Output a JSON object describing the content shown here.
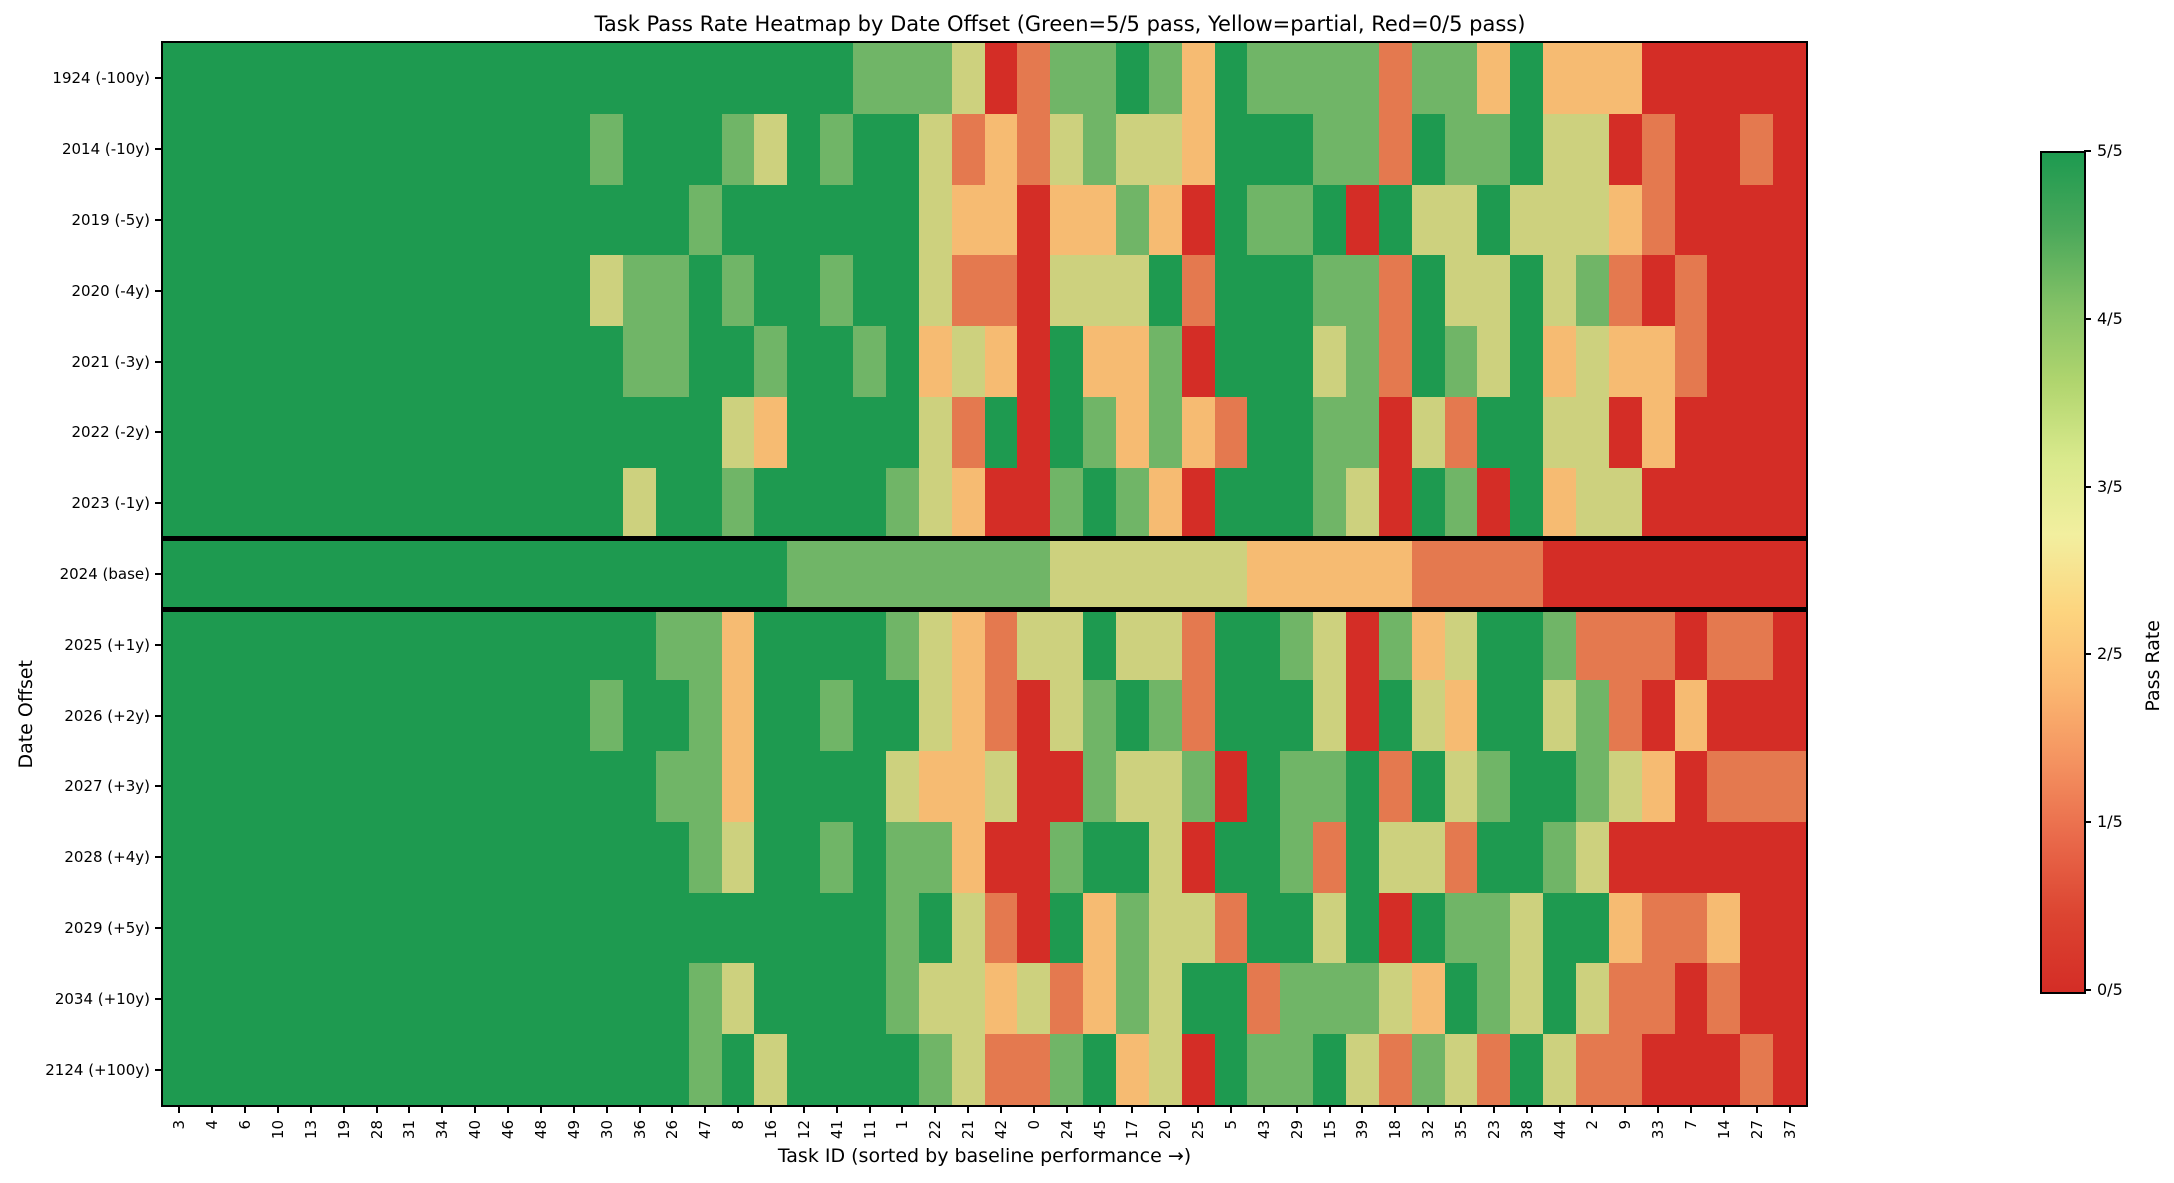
{
  "title": "Task Pass Rate Heatmap by Date Offset  (Green=5/5 pass, Yellow=partial, Red=0/5 pass)",
  "x_axis_label": "Task ID (sorted by baseline performance →)",
  "y_axis_label": "Date Offset",
  "colorbar": {
    "label": "Pass Rate",
    "ticks": [
      "0/5",
      "1/5",
      "2/5",
      "3/5",
      "4/5",
      "5/5"
    ],
    "gradient_bottom_to_top": [
      "#d42d26",
      "#dc4431",
      "#e9694a",
      "#f49260",
      "#fbb871",
      "#fdd57f",
      "#f2ef9f",
      "#d9e98c",
      "#b0d56e",
      "#83c166",
      "#4aa85a",
      "#1d9a50"
    ]
  },
  "chart_data": {
    "type": "heatmap",
    "title": "Task Pass Rate Heatmap by Date Offset  (Green=5/5 pass, Yellow=partial, Red=0/5 pass)",
    "xlabel": "Task ID (sorted by baseline performance →)",
    "ylabel": "Date Offset",
    "value_range": [
      0,
      5
    ],
    "value_unit": "passes out of 5",
    "legend_position": "right colorbar",
    "grid": false,
    "baseline_row": "2024 (base)",
    "separator_lines": "thick black horizontal lines above and below the 2024 (base) row",
    "x_labels": [
      "3",
      "4",
      "6",
      "10",
      "13",
      "19",
      "28",
      "31",
      "34",
      "40",
      "46",
      "48",
      "49",
      "30",
      "36",
      "26",
      "47",
      "8",
      "16",
      "12",
      "41",
      "11",
      "1",
      "22",
      "21",
      "42",
      "0",
      "24",
      "45",
      "17",
      "20",
      "25",
      "5",
      "43",
      "29",
      "15",
      "39",
      "18",
      "32",
      "35",
      "23",
      "38",
      "44",
      "2",
      "9",
      "33",
      "7",
      "14",
      "27",
      "37"
    ],
    "y_labels": [
      "1924 (-100y)",
      "2014 (-10y)",
      "2019 (-5y)",
      "2020 (-4y)",
      "2021 (-3y)",
      "2022 (-2y)",
      "2023 (-1y)",
      "2024 (base)",
      "2025 (+1y)",
      "2026 (+2y)",
      "2027 (+3y)",
      "2028 (+4y)",
      "2029 (+5y)",
      "2034 (+10y)",
      "2124 (+100y)"
    ],
    "level_colors": {
      "0": "#d42d26",
      "1": "#e4794f",
      "2": "#f6bb72",
      "3": "#cdd17e",
      "4": "#70b567",
      "5": "#1e9a50"
    },
    "matrix": [
      [
        5,
        5,
        5,
        5,
        5,
        5,
        5,
        5,
        5,
        5,
        5,
        5,
        5,
        5,
        5,
        5,
        5,
        5,
        5,
        5,
        5,
        4,
        4,
        4,
        3,
        0,
        1,
        4,
        4,
        5,
        4,
        2,
        5,
        4,
        4,
        4,
        4,
        1,
        4,
        4,
        2,
        5,
        2,
        2,
        2,
        0,
        0,
        0,
        0,
        0
      ],
      [
        5,
        5,
        5,
        5,
        5,
        5,
        5,
        5,
        5,
        5,
        5,
        5,
        5,
        4,
        5,
        5,
        5,
        4,
        3,
        5,
        4,
        5,
        5,
        3,
        1,
        2,
        1,
        3,
        4,
        3,
        3,
        2,
        5,
        5,
        5,
        4,
        4,
        1,
        5,
        4,
        4,
        5,
        3,
        3,
        0,
        1,
        0,
        0,
        1,
        0
      ],
      [
        5,
        5,
        5,
        5,
        5,
        5,
        5,
        5,
        5,
        5,
        5,
        5,
        5,
        5,
        5,
        5,
        4,
        5,
        5,
        5,
        5,
        5,
        5,
        3,
        2,
        2,
        0,
        2,
        2,
        4,
        2,
        0,
        5,
        4,
        4,
        5,
        0,
        5,
        3,
        3,
        5,
        3,
        3,
        3,
        2,
        1,
        0,
        0,
        0,
        0
      ],
      [
        5,
        5,
        5,
        5,
        5,
        5,
        5,
        5,
        5,
        5,
        5,
        5,
        5,
        3,
        4,
        4,
        5,
        4,
        5,
        5,
        4,
        5,
        5,
        3,
        1,
        1,
        0,
        3,
        3,
        3,
        5,
        1,
        5,
        5,
        5,
        4,
        4,
        1,
        5,
        3,
        3,
        5,
        3,
        4,
        1,
        0,
        1,
        0,
        0,
        0
      ],
      [
        5,
        5,
        5,
        5,
        5,
        5,
        5,
        5,
        5,
        5,
        5,
        5,
        5,
        5,
        4,
        4,
        5,
        5,
        4,
        5,
        5,
        4,
        5,
        2,
        3,
        2,
        0,
        5,
        2,
        2,
        4,
        0,
        5,
        5,
        5,
        3,
        4,
        1,
        5,
        4,
        3,
        5,
        2,
        3,
        2,
        2,
        1,
        0,
        0,
        0
      ],
      [
        5,
        5,
        5,
        5,
        5,
        5,
        5,
        5,
        5,
        5,
        5,
        5,
        5,
        5,
        5,
        5,
        5,
        3,
        2,
        5,
        5,
        5,
        5,
        3,
        1,
        5,
        0,
        5,
        4,
        2,
        4,
        2,
        1,
        5,
        5,
        4,
        4,
        0,
        3,
        1,
        5,
        5,
        3,
        3,
        0,
        2,
        0,
        0,
        0,
        0
      ],
      [
        5,
        5,
        5,
        5,
        5,
        5,
        5,
        5,
        5,
        5,
        5,
        5,
        5,
        5,
        3,
        5,
        5,
        4,
        5,
        5,
        5,
        5,
        4,
        3,
        2,
        0,
        0,
        4,
        5,
        4,
        2,
        0,
        5,
        5,
        5,
        4,
        3,
        0,
        5,
        4,
        0,
        5,
        2,
        3,
        3,
        0,
        0,
        0,
        0,
        0
      ],
      [
        5,
        5,
        5,
        5,
        5,
        5,
        5,
        5,
        5,
        5,
        5,
        5,
        5,
        5,
        5,
        5,
        5,
        5,
        5,
        4,
        4,
        4,
        4,
        4,
        4,
        4,
        4,
        3,
        3,
        3,
        3,
        3,
        3,
        2,
        2,
        2,
        2,
        2,
        1,
        1,
        1,
        1,
        0,
        0,
        0,
        0,
        0,
        0,
        0,
        0
      ],
      [
        5,
        5,
        5,
        5,
        5,
        5,
        5,
        5,
        5,
        5,
        5,
        5,
        5,
        5,
        5,
        4,
        4,
        2,
        5,
        5,
        5,
        5,
        4,
        3,
        2,
        1,
        3,
        3,
        5,
        3,
        3,
        1,
        5,
        5,
        4,
        3,
        0,
        4,
        2,
        3,
        5,
        5,
        4,
        1,
        1,
        1,
        0,
        1,
        1,
        0
      ],
      [
        5,
        5,
        5,
        5,
        5,
        5,
        5,
        5,
        5,
        5,
        5,
        5,
        5,
        4,
        5,
        5,
        4,
        2,
        5,
        5,
        4,
        5,
        5,
        3,
        2,
        1,
        0,
        3,
        4,
        5,
        4,
        1,
        5,
        5,
        5,
        3,
        0,
        5,
        3,
        2,
        5,
        5,
        3,
        4,
        1,
        0,
        2,
        0,
        0,
        0
      ],
      [
        5,
        5,
        5,
        5,
        5,
        5,
        5,
        5,
        5,
        5,
        5,
        5,
        5,
        5,
        5,
        4,
        4,
        2,
        5,
        5,
        5,
        5,
        3,
        2,
        2,
        3,
        0,
        0,
        4,
        3,
        3,
        4,
        0,
        5,
        4,
        4,
        5,
        1,
        5,
        3,
        4,
        5,
        5,
        4,
        3,
        2,
        0,
        1,
        1,
        1
      ],
      [
        5,
        5,
        5,
        5,
        5,
        5,
        5,
        5,
        5,
        5,
        5,
        5,
        5,
        5,
        5,
        5,
        4,
        3,
        5,
        5,
        4,
        5,
        4,
        4,
        2,
        0,
        0,
        4,
        5,
        5,
        3,
        0,
        5,
        5,
        4,
        1,
        5,
        3,
        3,
        1,
        5,
        5,
        4,
        3,
        0,
        0,
        0,
        0,
        0,
        0
      ],
      [
        5,
        5,
        5,
        5,
        5,
        5,
        5,
        5,
        5,
        5,
        5,
        5,
        5,
        5,
        5,
        5,
        5,
        5,
        5,
        5,
        5,
        5,
        4,
        5,
        3,
        1,
        0,
        5,
        2,
        4,
        3,
        3,
        1,
        5,
        5,
        3,
        5,
        0,
        5,
        4,
        4,
        3,
        5,
        5,
        2,
        1,
        1,
        2,
        0,
        0
      ],
      [
        5,
        5,
        5,
        5,
        5,
        5,
        5,
        5,
        5,
        5,
        5,
        5,
        5,
        5,
        5,
        5,
        4,
        3,
        5,
        5,
        5,
        5,
        4,
        3,
        3,
        2,
        3,
        1,
        2,
        4,
        3,
        5,
        5,
        1,
        4,
        4,
        4,
        3,
        2,
        5,
        4,
        3,
        5,
        3,
        1,
        1,
        0,
        1,
        0,
        0
      ],
      [
        5,
        5,
        5,
        5,
        5,
        5,
        5,
        5,
        5,
        5,
        5,
        5,
        5,
        5,
        5,
        5,
        4,
        5,
        3,
        5,
        5,
        5,
        5,
        4,
        3,
        1,
        1,
        4,
        5,
        2,
        3,
        0,
        5,
        4,
        4,
        5,
        3,
        1,
        4,
        3,
        1,
        5,
        3,
        1,
        1,
        0,
        0,
        0,
        1,
        0
      ]
    ]
  }
}
